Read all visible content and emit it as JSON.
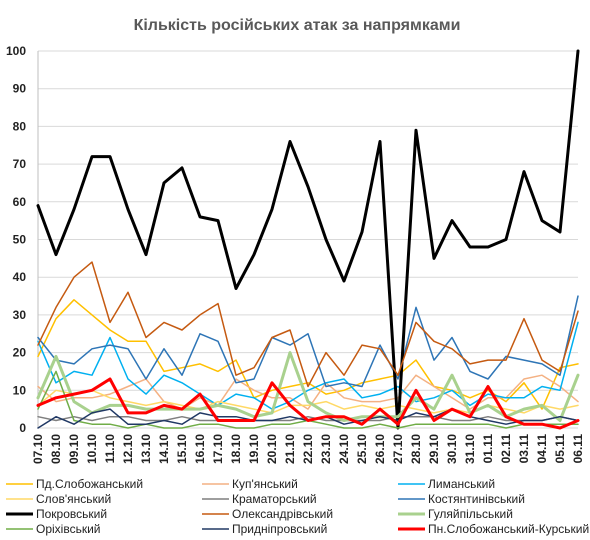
{
  "chart_data": {
    "type": "line",
    "title": "Кількість російських атак за напрямками",
    "xlabel": "",
    "ylabel": "",
    "ylim": [
      0,
      100
    ],
    "yticks": [
      0,
      10,
      20,
      30,
      40,
      50,
      60,
      70,
      80,
      90,
      100
    ],
    "grid": true,
    "legend_position": "bottom",
    "categories": [
      "07.10",
      "08.10",
      "09.10",
      "10.10",
      "11.10",
      "12.10",
      "13.10",
      "14.10",
      "15.10",
      "16.10",
      "17.10",
      "18.10",
      "19.10",
      "20.10",
      "21.10",
      "22.10",
      "23.10",
      "24.10",
      "25.10",
      "26.10",
      "27.10",
      "28.10",
      "29.10",
      "30.10",
      "31.10",
      "01.11",
      "02.11",
      "03.11",
      "04.11",
      "05.11",
      "06.11"
    ],
    "series": [
      {
        "name": "Пд.Слобожанський",
        "color": "#FFC000",
        "width": 1.5,
        "values": [
          19,
          29,
          34,
          30,
          26,
          23,
          23,
          15,
          16,
          17,
          15,
          18,
          8,
          10,
          11,
          12,
          9,
          10,
          12,
          13,
          14,
          18,
          11,
          10,
          8,
          10,
          7,
          12,
          5,
          16,
          17
        ]
      },
      {
        "name": "Куп'янський",
        "color": "#F4B183",
        "width": 1.5,
        "values": [
          11,
          7,
          8,
          8,
          9,
          11,
          13,
          7,
          5,
          8,
          6,
          13,
          10,
          8,
          8,
          5,
          12,
          8,
          7,
          7,
          8,
          14,
          11,
          8,
          5,
          8,
          8,
          13,
          14,
          11,
          7
        ]
      },
      {
        "name": "Лиманський",
        "color": "#00B0F0",
        "width": 1.5,
        "values": [
          23,
          12,
          15,
          14,
          24,
          13,
          9,
          14,
          12,
          9,
          6,
          9,
          8,
          5,
          7,
          10,
          12,
          13,
          8,
          9,
          11,
          7,
          8,
          10,
          6,
          9,
          8,
          8,
          11,
          10,
          28
        ]
      },
      {
        "name": "Слов'янський",
        "color": "#FFD966",
        "width": 1.5,
        "values": [
          6,
          10,
          9,
          10,
          8,
          7,
          6,
          7,
          6,
          5,
          7,
          6,
          5,
          4,
          6,
          6,
          7,
          5,
          6,
          5,
          6,
          5,
          4,
          5,
          4,
          6,
          5,
          4,
          6,
          5,
          6
        ]
      },
      {
        "name": "Краматорський",
        "color": "#7F7F7F",
        "width": 1.5,
        "values": [
          3,
          2,
          3,
          2,
          3,
          3,
          2,
          2,
          3,
          2,
          2,
          2,
          2,
          2,
          2,
          3,
          2,
          2,
          2,
          2,
          3,
          3,
          3,
          2,
          2,
          3,
          2,
          2,
          2,
          3,
          2
        ]
      },
      {
        "name": "Костянтинівський",
        "color": "#2E75B6",
        "width": 1.5,
        "values": [
          24,
          18,
          17,
          21,
          22,
          21,
          13,
          21,
          14,
          25,
          23,
          12,
          13,
          24,
          22,
          25,
          11,
          12,
          11,
          22,
          13,
          32,
          18,
          24,
          15,
          13,
          19,
          18,
          17,
          14,
          35
        ]
      },
      {
        "name": "Покровський",
        "color": "#000000",
        "width": 3,
        "values": [
          59,
          46,
          58,
          72,
          72,
          58,
          46,
          65,
          69,
          56,
          55,
          37,
          46,
          58,
          76,
          64,
          50,
          39,
          52,
          76,
          0,
          79,
          45,
          55,
          48,
          48,
          50,
          68,
          55,
          52,
          100
        ]
      },
      {
        "name": "Олександрівський",
        "color": "#C55A11",
        "width": 1.5,
        "values": [
          22,
          32,
          40,
          44,
          28,
          36,
          24,
          28,
          26,
          30,
          33,
          14,
          16,
          24,
          26,
          11,
          20,
          14,
          22,
          21,
          14,
          28,
          23,
          21,
          17,
          18,
          18,
          29,
          18,
          15,
          31
        ]
      },
      {
        "name": "Гуляйпільський",
        "color": "#A9D18E",
        "width": 3,
        "values": [
          8,
          19,
          7,
          4,
          6,
          6,
          5,
          5,
          5,
          5,
          6,
          5,
          3,
          4,
          20,
          7,
          4,
          2,
          3,
          3,
          3,
          8,
          5,
          14,
          4,
          6,
          3,
          5,
          6,
          2,
          14
        ]
      },
      {
        "name": "Оріхівський",
        "color": "#70AD47",
        "width": 1.5,
        "values": [
          5,
          15,
          2,
          1,
          1,
          0,
          1,
          0,
          0,
          1,
          1,
          0,
          0,
          1,
          1,
          2,
          1,
          0,
          0,
          1,
          0,
          1,
          1,
          1,
          1,
          1,
          0,
          1,
          1,
          1,
          1
        ]
      },
      {
        "name": "Придніпровський",
        "color": "#203864",
        "width": 1.5,
        "values": [
          0,
          3,
          1,
          4,
          5,
          1,
          1,
          2,
          1,
          4,
          3,
          3,
          2,
          2,
          3,
          2,
          3,
          1,
          2,
          3,
          2,
          4,
          3,
          5,
          3,
          2,
          1,
          2,
          2,
          3,
          2
        ]
      },
      {
        "name": "Пн.Слобожанський-Курський",
        "color": "#FF0000",
        "width": 3,
        "values": [
          6,
          8,
          9,
          10,
          13,
          4,
          4,
          6,
          5,
          9,
          2,
          2,
          2,
          12,
          6,
          2,
          3,
          3,
          1,
          5,
          1,
          10,
          2,
          5,
          3,
          11,
          3,
          1,
          1,
          0,
          2
        ]
      }
    ]
  }
}
